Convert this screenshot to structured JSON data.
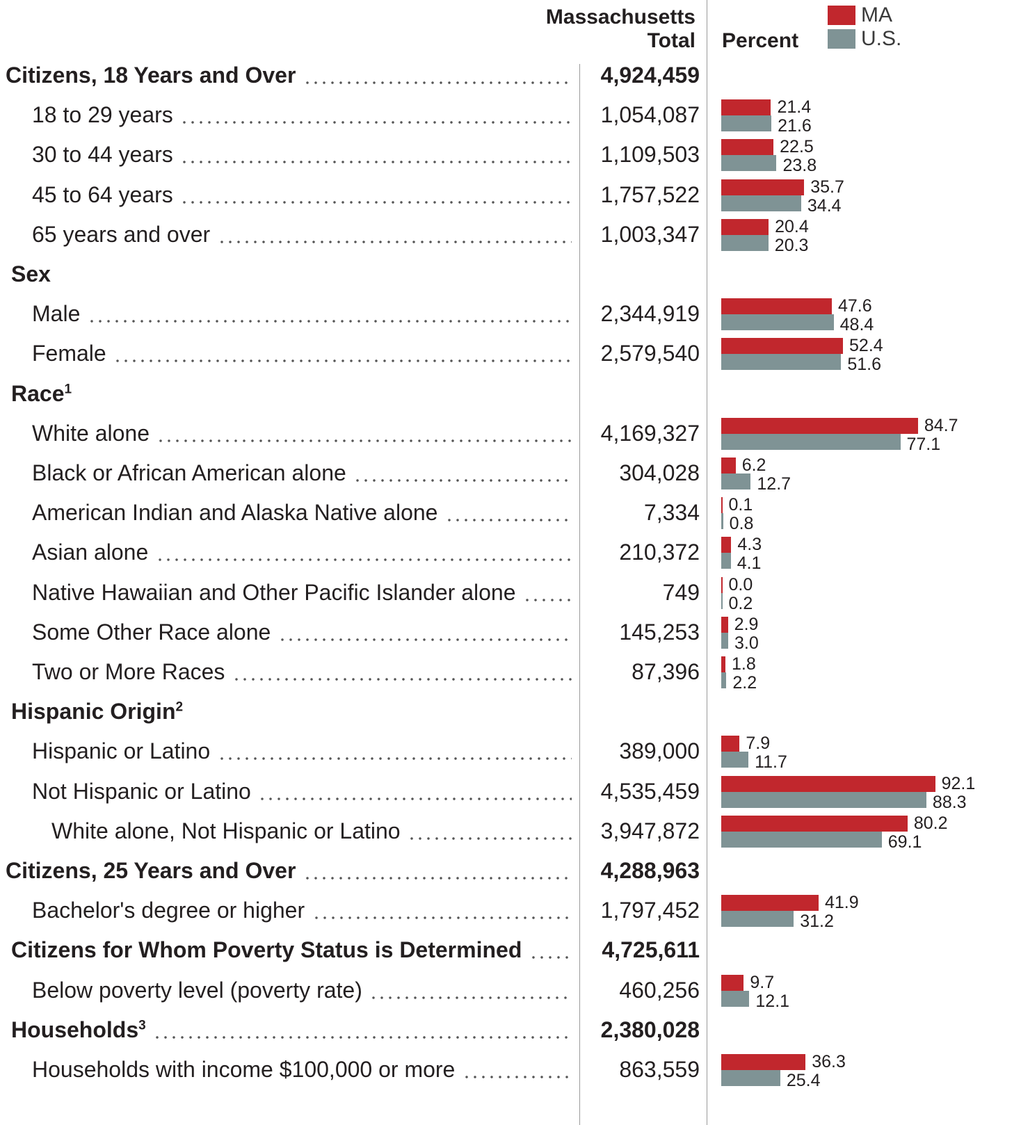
{
  "header": {
    "total_line1": "Massachusetts",
    "total_line2": "Total",
    "percent": "Percent"
  },
  "legend": [
    {
      "label": "MA",
      "color": "#c1272d"
    },
    {
      "label": "U.S.",
      "color": "#7f9395"
    }
  ],
  "chart_data": {
    "type": "bar",
    "orientation": "horizontal",
    "x_range": [
      0,
      100
    ],
    "series": [
      {
        "name": "MA",
        "color": "#c1272d"
      },
      {
        "name": "U.S.",
        "color": "#7f9395"
      }
    ],
    "rows": [
      {
        "label": "Citizens, 18 Years and Over",
        "bold": true,
        "dots": true,
        "total": "4,924,459"
      },
      {
        "label": "18 to 29 years",
        "indent": 1,
        "dots": true,
        "total": "1,054,087",
        "ma": 21.4,
        "us": 21.6
      },
      {
        "label": "30 to 44 years",
        "indent": 1,
        "dots": true,
        "total": "1,109,503",
        "ma": 22.5,
        "us": 23.8
      },
      {
        "label": "45 to 64 years",
        "indent": 1,
        "dots": true,
        "total": "1,757,522",
        "ma": 35.7,
        "us": 34.4
      },
      {
        "label": "65 years and over",
        "indent": 1,
        "dots": true,
        "total": "1,003,347",
        "ma": 20.4,
        "us": 20.3
      },
      {
        "label": "Sex",
        "bold": true,
        "indent": 0.5
      },
      {
        "label": "Male",
        "indent": 1,
        "dots": true,
        "total": "2,344,919",
        "ma": 47.6,
        "us": 48.4
      },
      {
        "label": "Female",
        "indent": 1,
        "dots": true,
        "total": "2,579,540",
        "ma": 52.4,
        "us": 51.6
      },
      {
        "label": "Race",
        "sup": "1",
        "bold": true,
        "indent": 0.5
      },
      {
        "label": "White alone",
        "indent": 1,
        "dots": true,
        "total": "4,169,327",
        "ma": 84.7,
        "us": 77.1
      },
      {
        "label": "Black or African American alone",
        "indent": 1,
        "dots": true,
        "total": "304,028",
        "ma": 6.2,
        "us": 12.7
      },
      {
        "label": "American Indian and Alaska Native alone",
        "indent": 1,
        "dots": true,
        "total": "7,334",
        "ma": 0.1,
        "us": 0.8
      },
      {
        "label": "Asian alone",
        "indent": 1,
        "dots": true,
        "total": "210,372",
        "ma": 4.3,
        "us": 4.1
      },
      {
        "label": "Native Hawaiian and Other Pacific Islander alone",
        "indent": 1,
        "dots": true,
        "total": "749",
        "ma": 0.0,
        "us": 0.2
      },
      {
        "label": "Some Other Race alone",
        "indent": 1,
        "dots": true,
        "total": "145,253",
        "ma": 2.9,
        "us": 3.0
      },
      {
        "label": "Two or More Races",
        "indent": 1,
        "dots": true,
        "total": "87,396",
        "ma": 1.8,
        "us": 2.2
      },
      {
        "label": "Hispanic Origin",
        "sup": "2",
        "bold": true,
        "indent": 0.5
      },
      {
        "label": "Hispanic or Latino",
        "indent": 1,
        "dots": true,
        "total": "389,000",
        "ma": 7.9,
        "us": 11.7
      },
      {
        "label": "Not Hispanic or Latino",
        "indent": 1,
        "dots": true,
        "total": "4,535,459",
        "ma": 92.1,
        "us": 88.3
      },
      {
        "label": "White alone, Not Hispanic or Latino",
        "indent": 2,
        "dots": true,
        "total": "3,947,872",
        "ma": 80.2,
        "us": 69.1
      },
      {
        "label": "Citizens, 25 Years and Over",
        "bold": true,
        "dots": true,
        "total": "4,288,963"
      },
      {
        "label": "Bachelor's degree or higher",
        "indent": 1,
        "dots": true,
        "total": "1,797,452",
        "ma": 41.9,
        "us": 31.2
      },
      {
        "label": "Citizens for Whom Poverty Status is Determined",
        "bold": true,
        "indent": 0.5,
        "dots": true,
        "total": "4,725,611"
      },
      {
        "label": "Below poverty level (poverty rate)",
        "indent": 1,
        "dots": true,
        "total": "460,256",
        "ma": 9.7,
        "us": 12.1
      },
      {
        "label": "Households",
        "sup": "3",
        "bold": true,
        "indent": 0.5,
        "dots": true,
        "total": "2,380,028"
      },
      {
        "label": "Households with income $100,000 or more",
        "indent": 1,
        "dots": true,
        "total": "863,559",
        "ma": 36.3,
        "us": 25.4
      }
    ]
  }
}
